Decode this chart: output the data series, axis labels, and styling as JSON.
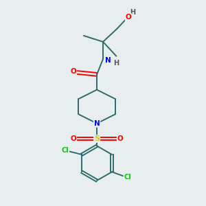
{
  "background_color": "#e8edf0",
  "bond_color": "#2d6b6b",
  "atom_colors": {
    "O": "#ff0000",
    "N": "#0000ff",
    "S": "#cccc00",
    "Cl": "#00cc00",
    "H": "#555555",
    "C": "#2d6b6b"
  },
  "figsize": [
    3.0,
    3.0
  ],
  "dpi": 100
}
